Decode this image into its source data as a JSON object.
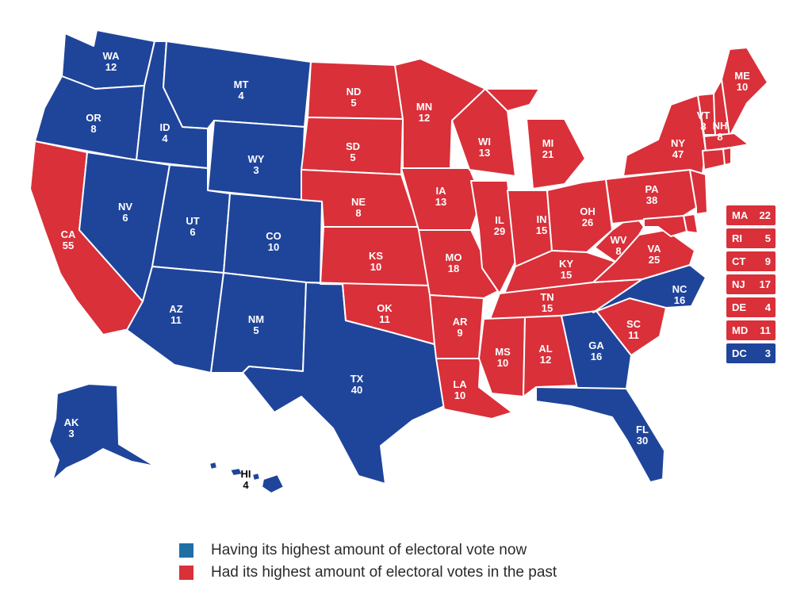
{
  "colors": {
    "blue": "#1f459b",
    "red": "#d9303a",
    "legend_blue": "#1f6fa5",
    "border": "#ffffff"
  },
  "states": [
    {
      "abbr": "WA",
      "votes": "12",
      "color": "blue"
    },
    {
      "abbr": "OR",
      "votes": "8",
      "color": "blue"
    },
    {
      "abbr": "CA",
      "votes": "55",
      "color": "red"
    },
    {
      "abbr": "ID",
      "votes": "4",
      "color": "blue"
    },
    {
      "abbr": "NV",
      "votes": "6",
      "color": "blue"
    },
    {
      "abbr": "MT",
      "votes": "4",
      "color": "blue"
    },
    {
      "abbr": "WY",
      "votes": "3",
      "color": "blue"
    },
    {
      "abbr": "UT",
      "votes": "6",
      "color": "blue"
    },
    {
      "abbr": "AZ",
      "votes": "11",
      "color": "blue"
    },
    {
      "abbr": "CO",
      "votes": "10",
      "color": "blue"
    },
    {
      "abbr": "NM",
      "votes": "5",
      "color": "blue"
    },
    {
      "abbr": "TX",
      "votes": "40",
      "color": "blue"
    },
    {
      "abbr": "ND",
      "votes": "5",
      "color": "red"
    },
    {
      "abbr": "SD",
      "votes": "5",
      "color": "red"
    },
    {
      "abbr": "NE",
      "votes": "8",
      "color": "red"
    },
    {
      "abbr": "KS",
      "votes": "10",
      "color": "red"
    },
    {
      "abbr": "OK",
      "votes": "11",
      "color": "red"
    },
    {
      "abbr": "MN",
      "votes": "12",
      "color": "red"
    },
    {
      "abbr": "IA",
      "votes": "13",
      "color": "red"
    },
    {
      "abbr": "MO",
      "votes": "18",
      "color": "red"
    },
    {
      "abbr": "AR",
      "votes": "9",
      "color": "red"
    },
    {
      "abbr": "LA",
      "votes": "10",
      "color": "red"
    },
    {
      "abbr": "WI",
      "votes": "13",
      "color": "red"
    },
    {
      "abbr": "IL",
      "votes": "29",
      "color": "red"
    },
    {
      "abbr": "MI",
      "votes": "21",
      "color": "red"
    },
    {
      "abbr": "IN",
      "votes": "15",
      "color": "red"
    },
    {
      "abbr": "OH",
      "votes": "26",
      "color": "red"
    },
    {
      "abbr": "KY",
      "votes": "15",
      "color": "red"
    },
    {
      "abbr": "TN",
      "votes": "15",
      "color": "red"
    },
    {
      "abbr": "MS",
      "votes": "10",
      "color": "red"
    },
    {
      "abbr": "AL",
      "votes": "12",
      "color": "red"
    },
    {
      "abbr": "GA",
      "votes": "16",
      "color": "blue"
    },
    {
      "abbr": "FL",
      "votes": "30",
      "color": "blue"
    },
    {
      "abbr": "SC",
      "votes": "11",
      "color": "red"
    },
    {
      "abbr": "NC",
      "votes": "16",
      "color": "blue"
    },
    {
      "abbr": "VA",
      "votes": "25",
      "color": "red"
    },
    {
      "abbr": "WV",
      "votes": "8",
      "color": "red"
    },
    {
      "abbr": "PA",
      "votes": "38",
      "color": "red"
    },
    {
      "abbr": "NY",
      "votes": "47",
      "color": "red"
    },
    {
      "abbr": "VT",
      "votes": "8",
      "color": "red"
    },
    {
      "abbr": "NH",
      "votes": "8",
      "color": "red"
    },
    {
      "abbr": "ME",
      "votes": "10",
      "color": "red"
    },
    {
      "abbr": "AK",
      "votes": "3",
      "color": "blue"
    },
    {
      "abbr": "HI",
      "votes": "4",
      "color": "blue"
    }
  ],
  "small_states": [
    {
      "abbr": "MA",
      "votes": "22",
      "color": "red"
    },
    {
      "abbr": "RI",
      "votes": "5",
      "color": "red"
    },
    {
      "abbr": "CT",
      "votes": "9",
      "color": "red"
    },
    {
      "abbr": "NJ",
      "votes": "17",
      "color": "red"
    },
    {
      "abbr": "DE",
      "votes": "4",
      "color": "red"
    },
    {
      "abbr": "MD",
      "votes": "11",
      "color": "red"
    },
    {
      "abbr": "DC",
      "votes": "3",
      "color": "blue"
    }
  ],
  "legend": [
    {
      "label": "Having its highest amount of electoral vote now",
      "color": "legend_blue"
    },
    {
      "label": "Had its highest amount of electoral votes in the past",
      "color": "red"
    }
  ]
}
